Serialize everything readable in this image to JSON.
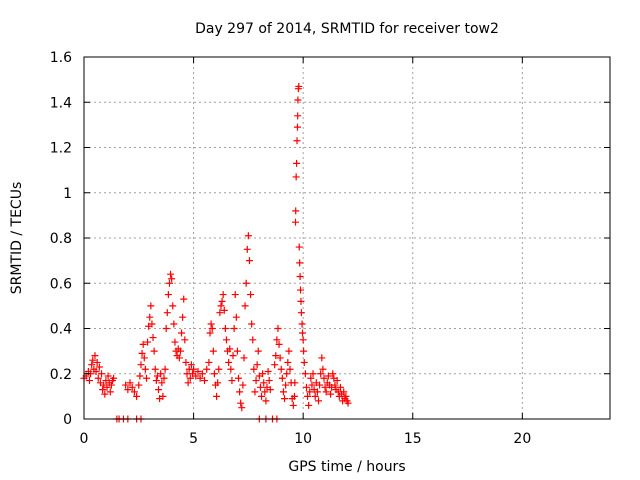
{
  "chart_data": {
    "type": "scatter",
    "title": "Day 297 of 2014, SRMTID for receiver tow2",
    "xlabel": "GPS time / hours",
    "ylabel": "SRMTID / TECUs",
    "xlim": [
      0,
      24
    ],
    "ylim": [
      0,
      1.6
    ],
    "xticks": [
      0,
      5,
      10,
      15,
      20
    ],
    "xtick_labels": [
      "0",
      "5",
      "10",
      "15",
      "20"
    ],
    "yticks": [
      0,
      0.2,
      0.4,
      0.6,
      0.8,
      1,
      1.2,
      1.4,
      1.6
    ],
    "ytick_labels": [
      "0",
      "0.2",
      "0.4",
      "0.6",
      "0.8",
      "1",
      "1.2",
      "1.4",
      "1.6"
    ],
    "grid": true,
    "marker": "+",
    "series": [
      {
        "name": "SRMTID",
        "color": "#ff0000",
        "points": [
          [
            0.0,
            0.18
          ],
          [
            0.1,
            0.19
          ],
          [
            0.2,
            0.21
          ],
          [
            0.25,
            0.17
          ],
          [
            0.3,
            0.2
          ],
          [
            0.35,
            0.24
          ],
          [
            0.4,
            0.26
          ],
          [
            0.45,
            0.22
          ],
          [
            0.5,
            0.28
          ],
          [
            0.55,
            0.21
          ],
          [
            0.6,
            0.25
          ],
          [
            0.65,
            0.18
          ],
          [
            0.7,
            0.23
          ],
          [
            0.75,
            0.16
          ],
          [
            0.8,
            0.2
          ],
          [
            0.85,
            0.13
          ],
          [
            0.9,
            0.15
          ],
          [
            0.95,
            0.11
          ],
          [
            1.0,
            0.17
          ],
          [
            1.05,
            0.14
          ],
          [
            1.1,
            0.19
          ],
          [
            1.15,
            0.16
          ],
          [
            1.2,
            0.12
          ],
          [
            1.25,
            0.15
          ],
          [
            1.3,
            0.17
          ],
          [
            1.35,
            0.18
          ],
          [
            1.5,
            0.0
          ],
          [
            1.6,
            0.0
          ],
          [
            1.8,
            0.0
          ],
          [
            2.0,
            0.0
          ],
          [
            2.4,
            0.0
          ],
          [
            2.6,
            0.0
          ],
          [
            1.9,
            0.15
          ],
          [
            2.0,
            0.13
          ],
          [
            2.1,
            0.16
          ],
          [
            2.2,
            0.14
          ],
          [
            2.3,
            0.12
          ],
          [
            2.4,
            0.1
          ],
          [
            2.5,
            0.15
          ],
          [
            2.55,
            0.19
          ],
          [
            2.6,
            0.24
          ],
          [
            2.65,
            0.29
          ],
          [
            2.7,
            0.33
          ],
          [
            2.75,
            0.27
          ],
          [
            2.8,
            0.22
          ],
          [
            2.85,
            0.18
          ],
          [
            2.9,
            0.34
          ],
          [
            2.95,
            0.41
          ],
          [
            3.0,
            0.45
          ],
          [
            3.05,
            0.5
          ],
          [
            3.1,
            0.42
          ],
          [
            3.15,
            0.36
          ],
          [
            3.2,
            0.3
          ],
          [
            3.25,
            0.22
          ],
          [
            3.3,
            0.17
          ],
          [
            3.35,
            0.19
          ],
          [
            3.4,
            0.13
          ],
          [
            3.45,
            0.09
          ],
          [
            3.5,
            0.2
          ],
          [
            3.55,
            0.16
          ],
          [
            3.6,
            0.1
          ],
          [
            3.65,
            0.18
          ],
          [
            3.7,
            0.22
          ],
          [
            3.75,
            0.4
          ],
          [
            3.8,
            0.47
          ],
          [
            3.85,
            0.55
          ],
          [
            3.9,
            0.6
          ],
          [
            3.95,
            0.64
          ],
          [
            4.0,
            0.62
          ],
          [
            4.05,
            0.5
          ],
          [
            4.1,
            0.42
          ],
          [
            4.15,
            0.34
          ],
          [
            4.2,
            0.3
          ],
          [
            4.25,
            0.28
          ],
          [
            4.3,
            0.31
          ],
          [
            4.35,
            0.27
          ],
          [
            4.4,
            0.3
          ],
          [
            4.45,
            0.38
          ],
          [
            4.5,
            0.45
          ],
          [
            4.55,
            0.53
          ],
          [
            4.6,
            0.35
          ],
          [
            4.65,
            0.25
          ],
          [
            4.7,
            0.2
          ],
          [
            4.75,
            0.16
          ],
          [
            4.8,
            0.22
          ],
          [
            4.85,
            0.18
          ],
          [
            4.9,
            0.24
          ],
          [
            4.95,
            0.2
          ],
          [
            5.0,
            0.22
          ],
          [
            5.1,
            0.19
          ],
          [
            5.2,
            0.21
          ],
          [
            5.3,
            0.18
          ],
          [
            5.4,
            0.2
          ],
          [
            5.5,
            0.17
          ],
          [
            5.6,
            0.22
          ],
          [
            5.7,
            0.25
          ],
          [
            5.75,
            0.38
          ],
          [
            5.8,
            0.42
          ],
          [
            5.85,
            0.4
          ],
          [
            5.9,
            0.3
          ],
          [
            5.95,
            0.2
          ],
          [
            6.0,
            0.15
          ],
          [
            6.05,
            0.1
          ],
          [
            6.1,
            0.16
          ],
          [
            6.15,
            0.22
          ],
          [
            6.2,
            0.47
          ],
          [
            6.25,
            0.5
          ],
          [
            6.3,
            0.52
          ],
          [
            6.35,
            0.55
          ],
          [
            6.4,
            0.48
          ],
          [
            6.45,
            0.4
          ],
          [
            6.5,
            0.35
          ],
          [
            6.55,
            0.3
          ],
          [
            6.6,
            0.25
          ],
          [
            6.65,
            0.31
          ],
          [
            6.7,
            0.22
          ],
          [
            6.75,
            0.17
          ],
          [
            6.8,
            0.28
          ],
          [
            6.85,
            0.4
          ],
          [
            6.9,
            0.55
          ],
          [
            6.95,
            0.45
          ],
          [
            7.0,
            0.3
          ],
          [
            7.05,
            0.18
          ],
          [
            7.1,
            0.12
          ],
          [
            7.15,
            0.07
          ],
          [
            7.2,
            0.05
          ],
          [
            7.25,
            0.15
          ],
          [
            7.3,
            0.27
          ],
          [
            7.35,
            0.5
          ],
          [
            7.4,
            0.6
          ],
          [
            7.45,
            0.75
          ],
          [
            7.5,
            0.81
          ],
          [
            7.55,
            0.7
          ],
          [
            7.6,
            0.55
          ],
          [
            7.65,
            0.42
          ],
          [
            7.7,
            0.35
          ],
          [
            7.75,
            0.22
          ],
          [
            7.8,
            0.12
          ],
          [
            7.85,
            0.17
          ],
          [
            7.9,
            0.24
          ],
          [
            7.95,
            0.3
          ],
          [
            8.0,
            0.19
          ],
          [
            8.05,
            0.14
          ],
          [
            8.1,
            0.1
          ],
          [
            8.15,
            0.2
          ],
          [
            8.2,
            0.16
          ],
          [
            8.25,
            0.12
          ],
          [
            8.3,
            0.08
          ],
          [
            8.35,
            0.14
          ],
          [
            8.4,
            0.21
          ],
          [
            8.45,
            0.17
          ],
          [
            8.5,
            0.13
          ],
          [
            8.0,
            0.0
          ],
          [
            8.3,
            0.0
          ],
          [
            8.6,
            0.0
          ],
          [
            8.8,
            0.0
          ],
          [
            8.7,
            0.24
          ],
          [
            8.75,
            0.28
          ],
          [
            8.8,
            0.35
          ],
          [
            8.85,
            0.4
          ],
          [
            8.9,
            0.33
          ],
          [
            8.95,
            0.27
          ],
          [
            9.0,
            0.22
          ],
          [
            9.05,
            0.18
          ],
          [
            9.1,
            0.12
          ],
          [
            9.15,
            0.09
          ],
          [
            9.2,
            0.15
          ],
          [
            9.25,
            0.2
          ],
          [
            9.3,
            0.25
          ],
          [
            9.35,
            0.3
          ],
          [
            9.4,
            0.22
          ],
          [
            9.45,
            0.16
          ],
          [
            9.5,
            0.09
          ],
          [
            9.55,
            0.06
          ],
          [
            9.6,
            0.1
          ],
          [
            9.62,
            0.16
          ],
          [
            9.65,
            0.87
          ],
          [
            9.66,
            0.92
          ],
          [
            9.68,
            1.07
          ],
          [
            9.7,
            1.13
          ],
          [
            9.72,
            1.23
          ],
          [
            9.74,
            1.29
          ],
          [
            9.75,
            1.34
          ],
          [
            9.76,
            1.41
          ],
          [
            9.78,
            1.46
          ],
          [
            9.8,
            1.47
          ],
          [
            9.82,
            0.76
          ],
          [
            9.84,
            0.69
          ],
          [
            9.86,
            0.63
          ],
          [
            9.88,
            0.57
          ],
          [
            9.9,
            0.52
          ],
          [
            9.92,
            0.47
          ],
          [
            9.95,
            0.42
          ],
          [
            9.97,
            0.38
          ],
          [
            10.0,
            0.35
          ],
          [
            10.02,
            0.3
          ],
          [
            10.05,
            0.25
          ],
          [
            10.1,
            0.2
          ],
          [
            10.15,
            0.14
          ],
          [
            10.2,
            0.1
          ],
          [
            10.25,
            0.06
          ],
          [
            10.3,
            0.12
          ],
          [
            10.35,
            0.18
          ],
          [
            10.4,
            0.15
          ],
          [
            10.45,
            0.2
          ],
          [
            10.5,
            0.13
          ],
          [
            10.55,
            0.1
          ],
          [
            10.6,
            0.16
          ],
          [
            10.65,
            0.12
          ],
          [
            10.7,
            0.08
          ],
          [
            10.75,
            0.15
          ],
          [
            10.8,
            0.2
          ],
          [
            10.85,
            0.27
          ],
          [
            10.9,
            0.22
          ],
          [
            10.95,
            0.18
          ],
          [
            11.0,
            0.14
          ],
          [
            11.05,
            0.12
          ],
          [
            11.1,
            0.16
          ],
          [
            11.15,
            0.19
          ],
          [
            11.2,
            0.15
          ],
          [
            11.25,
            0.11
          ],
          [
            11.3,
            0.14
          ],
          [
            11.35,
            0.2
          ],
          [
            11.4,
            0.18
          ],
          [
            11.45,
            0.15
          ],
          [
            11.5,
            0.13
          ],
          [
            11.55,
            0.17
          ],
          [
            11.6,
            0.12
          ],
          [
            11.65,
            0.1
          ],
          [
            11.7,
            0.14
          ],
          [
            11.75,
            0.11
          ],
          [
            11.8,
            0.08
          ],
          [
            11.85,
            0.12
          ],
          [
            11.9,
            0.09
          ],
          [
            11.95,
            0.1
          ],
          [
            12.0,
            0.08
          ],
          [
            12.05,
            0.07
          ]
        ]
      }
    ]
  }
}
